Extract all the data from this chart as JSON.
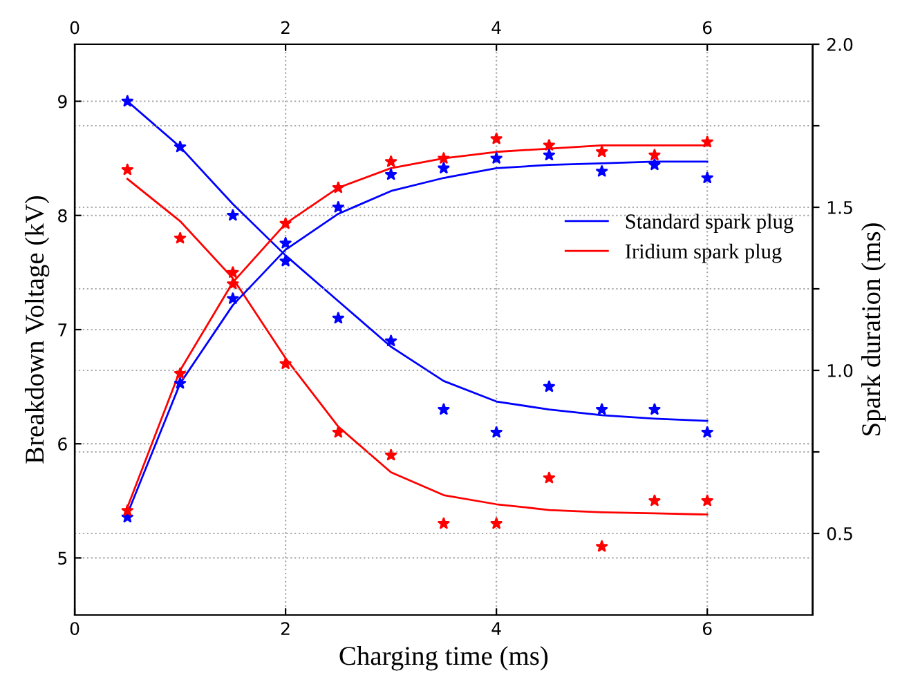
{
  "chart_data": {
    "type": "scatter",
    "xlabel": "Charging time (ms)",
    "ylabel": "Breakdown Voltage (kV)",
    "y2label": "Spark duration (ms)",
    "xlim": [
      0,
      7
    ],
    "xticks": [
      0,
      2,
      4,
      6
    ],
    "x2lim": [
      0,
      7
    ],
    "x2ticks": [
      0,
      2,
      4,
      6
    ],
    "ylim": [
      4.5,
      9.5
    ],
    "yticks": [
      5,
      6,
      7,
      8,
      9
    ],
    "y2lim": [
      0.25,
      2.0
    ],
    "y2ticks": [
      {
        "value": 0.5,
        "label": "0.5"
      },
      {
        "value": 0.75,
        "label": null
      },
      {
        "value": 1.0,
        "label": "1.0"
      },
      {
        "value": 1.25,
        "label": null
      },
      {
        "value": 1.5,
        "label": "1.5"
      },
      {
        "value": 1.75,
        "label": null
      },
      {
        "value": 2.0,
        "label": "2.0"
      }
    ],
    "grid": true,
    "legend": "right",
    "series": [
      {
        "axis": "y",
        "marker": "star",
        "color": "#0000ff",
        "x": [
          0.5,
          1,
          1.5,
          2,
          2.5,
          3,
          3.5,
          4,
          4.5,
          5,
          5.5,
          6
        ],
        "values": [
          9.0,
          8.6,
          8.0,
          7.6,
          7.1,
          6.9,
          6.3,
          6.1,
          6.5,
          6.3,
          6.3,
          6.1
        ]
      },
      {
        "axis": "y",
        "marker": "star",
        "color": "#ff0000",
        "x": [
          0.5,
          1,
          1.5,
          2,
          2.5,
          3,
          3.5,
          4,
          4.5,
          5,
          5.5,
          6
        ],
        "values": [
          8.4,
          7.8,
          7.4,
          6.7,
          6.1,
          5.9,
          5.3,
          5.3,
          5.7,
          5.1,
          5.5,
          5.5
        ]
      },
      {
        "axis": "y2",
        "marker": "star",
        "color": "#0000ff",
        "x": [
          0.5,
          1,
          1.5,
          2,
          2.5,
          3,
          3.5,
          4,
          4.5,
          5,
          5.5,
          6
        ],
        "values": [
          0.55,
          0.96,
          1.22,
          1.39,
          1.5,
          1.6,
          1.62,
          1.65,
          1.66,
          1.61,
          1.63,
          1.59
        ]
      },
      {
        "axis": "y2",
        "marker": "star",
        "color": "#ff0000",
        "x": [
          0.5,
          1,
          1.5,
          2,
          2.5,
          3,
          3.5,
          4,
          4.5,
          5,
          5.5,
          6
        ],
        "values": [
          0.57,
          0.99,
          1.3,
          1.45,
          1.56,
          1.64,
          1.65,
          1.71,
          1.69,
          1.67,
          1.66,
          1.7
        ]
      },
      {
        "type": "line",
        "axis": "y",
        "name": "Standard spark plug",
        "color": "#0000ff",
        "x": [
          0.5,
          1,
          1.5,
          2,
          2.5,
          3,
          3.5,
          4,
          4.5,
          5,
          5.5,
          6
        ],
        "values": [
          9.0,
          8.6,
          8.1,
          7.65,
          7.25,
          6.85,
          6.55,
          6.37,
          6.3,
          6.25,
          6.22,
          6.2
        ]
      },
      {
        "type": "line",
        "axis": "y",
        "name": "Iridium spark plug",
        "color": "#ff0000",
        "x": [
          0.5,
          1,
          1.5,
          2,
          2.5,
          3,
          3.5,
          4,
          4.5,
          5,
          5.5,
          6
        ],
        "values": [
          8.32,
          7.95,
          7.45,
          6.75,
          6.15,
          5.75,
          5.55,
          5.47,
          5.42,
          5.4,
          5.39,
          5.38
        ]
      },
      {
        "type": "line",
        "axis": "y2",
        "color": "#0000ff",
        "x": [
          0.5,
          1,
          1.5,
          2,
          2.5,
          3,
          3.5,
          4,
          4.5,
          5,
          5.5,
          6
        ],
        "values": [
          0.56,
          0.96,
          1.2,
          1.37,
          1.48,
          1.55,
          1.59,
          1.62,
          1.63,
          1.635,
          1.64,
          1.64
        ]
      },
      {
        "type": "line",
        "axis": "y2",
        "color": "#ff0000",
        "x": [
          0.5,
          1,
          1.5,
          2,
          2.5,
          3,
          3.5,
          4,
          4.5,
          5,
          5.5,
          6
        ],
        "values": [
          0.58,
          1.0,
          1.27,
          1.45,
          1.56,
          1.62,
          1.65,
          1.67,
          1.68,
          1.69,
          1.69,
          1.69
        ]
      }
    ]
  }
}
